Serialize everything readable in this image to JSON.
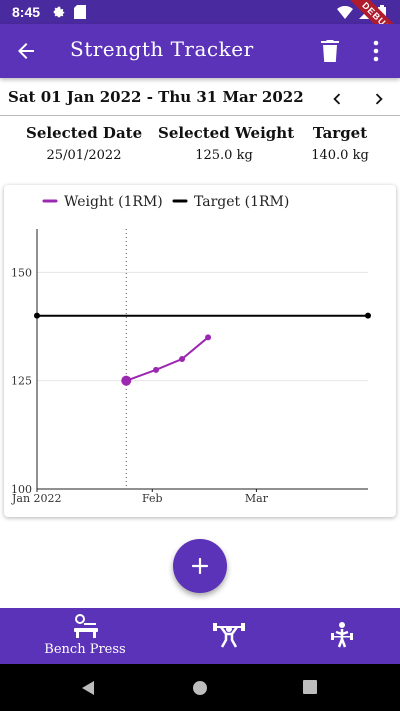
{
  "status_bar": {
    "time": "8:45",
    "icons": [
      "gear-icon",
      "sd-card-icon",
      "wifi-icon",
      "signal-icon",
      "battery-icon"
    ],
    "debug_label": "DEBUG"
  },
  "app_bar": {
    "title": "Strength Tracker",
    "background": "#5b33b8"
  },
  "date_range": {
    "label": "Sat 01 Jan 2022 - Thu 31 Mar 2022"
  },
  "summary": {
    "selected_date": {
      "label": "Selected Date",
      "value": "25/01/2022"
    },
    "selected_weight": {
      "label": "Selected Weight",
      "value": "125.0 kg"
    },
    "target": {
      "label": "Target",
      "value": "140.0 kg"
    }
  },
  "chart_data": {
    "type": "line",
    "legend_position": "top",
    "series": [
      {
        "name": "Weight (1RM)",
        "color": "#9c27b0",
        "points": [
          {
            "x": "2022-01-25",
            "y": 125
          },
          {
            "x": "2022-02-02",
            "y": 127.5
          },
          {
            "x": "2022-02-09",
            "y": 130
          },
          {
            "x": "2022-02-16",
            "y": 135
          }
        ]
      },
      {
        "name": "Target (1RM)",
        "color": "#000000",
        "points": [
          {
            "x": "2022-01-01",
            "y": 140
          },
          {
            "x": "2022-03-31",
            "y": 140
          }
        ]
      }
    ],
    "selected_x": "2022-01-25",
    "x_ticks": [
      {
        "x": "2022-01-01",
        "label": "Jan 2022"
      },
      {
        "x": "2022-02-01",
        "label": "Feb"
      },
      {
        "x": "2022-03-01",
        "label": "Mar"
      }
    ],
    "y_ticks": [
      100,
      125,
      150
    ],
    "xlim": [
      "2022-01-01",
      "2022-03-31"
    ],
    "ylim": [
      100,
      160
    ],
    "grid": "horizontal"
  },
  "fab": {
    "icon": "plus-icon"
  },
  "bottom_nav": {
    "items": [
      {
        "label": "Bench Press",
        "icon": "bench-press-icon",
        "active": true
      },
      {
        "label": "",
        "icon": "weightlifter-icon",
        "active": false
      },
      {
        "label": "",
        "icon": "deadlift-icon",
        "active": false
      }
    ]
  },
  "system_nav": {
    "icons": [
      "back-triangle-icon",
      "home-circle-icon",
      "recents-square-icon"
    ]
  }
}
